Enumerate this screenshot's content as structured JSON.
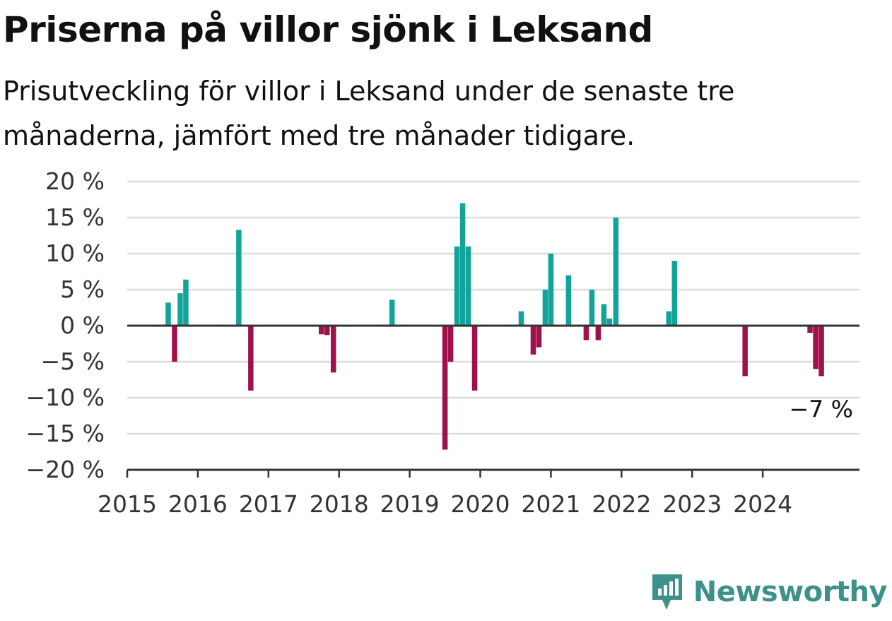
{
  "title": "Priserna på villor sjönk i Leksand",
  "subtitle": "Prisutveckling för villor i Leksand under de senaste tre månaderna, jämfört med tre månader tidigare.",
  "brand": {
    "name": "Newsworthy",
    "icon": "newsworthy-logo-icon",
    "color": "#3d918a"
  },
  "colors": {
    "positive": "#12a39a",
    "negative": "#a0104a",
    "grid": "#dddddd",
    "axis": "#333333"
  },
  "chart_data": {
    "type": "bar",
    "title": "",
    "xlabel": "",
    "ylabel": "",
    "ylim": [
      -20,
      20
    ],
    "xlim": [
      2015,
      2025.37
    ],
    "y_ticks": [
      20,
      15,
      10,
      5,
      0,
      -5,
      -10,
      -15,
      -20
    ],
    "y_tick_labels": [
      "20 %",
      "15 %",
      "10 %",
      "5 %",
      "0 %",
      "−5 %",
      "−10 %",
      "−15 %",
      "−20 %"
    ],
    "x_ticks": [
      2015,
      2016,
      2017,
      2018,
      2019,
      2020,
      2021,
      2022,
      2023,
      2024
    ],
    "x_tick_labels": [
      "2015",
      "2016",
      "2017",
      "2018",
      "2019",
      "2020",
      "2021",
      "2022",
      "2023",
      "2024"
    ],
    "grid": true,
    "series": [
      {
        "x": [
          2015.58,
          2015.67,
          2015.75,
          2015.83,
          2016.58,
          2016.75,
          2017.75,
          2017.83,
          2017.92,
          2018.75,
          2019.5,
          2019.58,
          2019.67,
          2019.75,
          2019.83,
          2019.92,
          2020.58,
          2020.75,
          2020.83,
          2020.92,
          2021.0,
          2021.25,
          2021.5,
          2021.58,
          2021.67,
          2021.75,
          2021.83,
          2021.92,
          2022.67,
          2022.75,
          2023.75,
          2024.67,
          2024.75,
          2024.83
        ],
        "values": [
          3.2,
          -5.0,
          4.5,
          6.4,
          13.3,
          -9.0,
          -1.2,
          -1.3,
          -6.5,
          3.6,
          -17.2,
          -5.0,
          11.0,
          17.0,
          11.0,
          -9.0,
          2.0,
          -4.0,
          -3.0,
          5.0,
          10.0,
          7.0,
          -2.0,
          5.0,
          -2.0,
          3.0,
          1.0,
          15.0,
          2.0,
          9.0,
          -7.0,
          -1.0,
          -6.0,
          -7.0
        ]
      }
    ],
    "annotations": [
      {
        "text": "−7 %",
        "x": 2024.83,
        "y": -7
      }
    ]
  }
}
